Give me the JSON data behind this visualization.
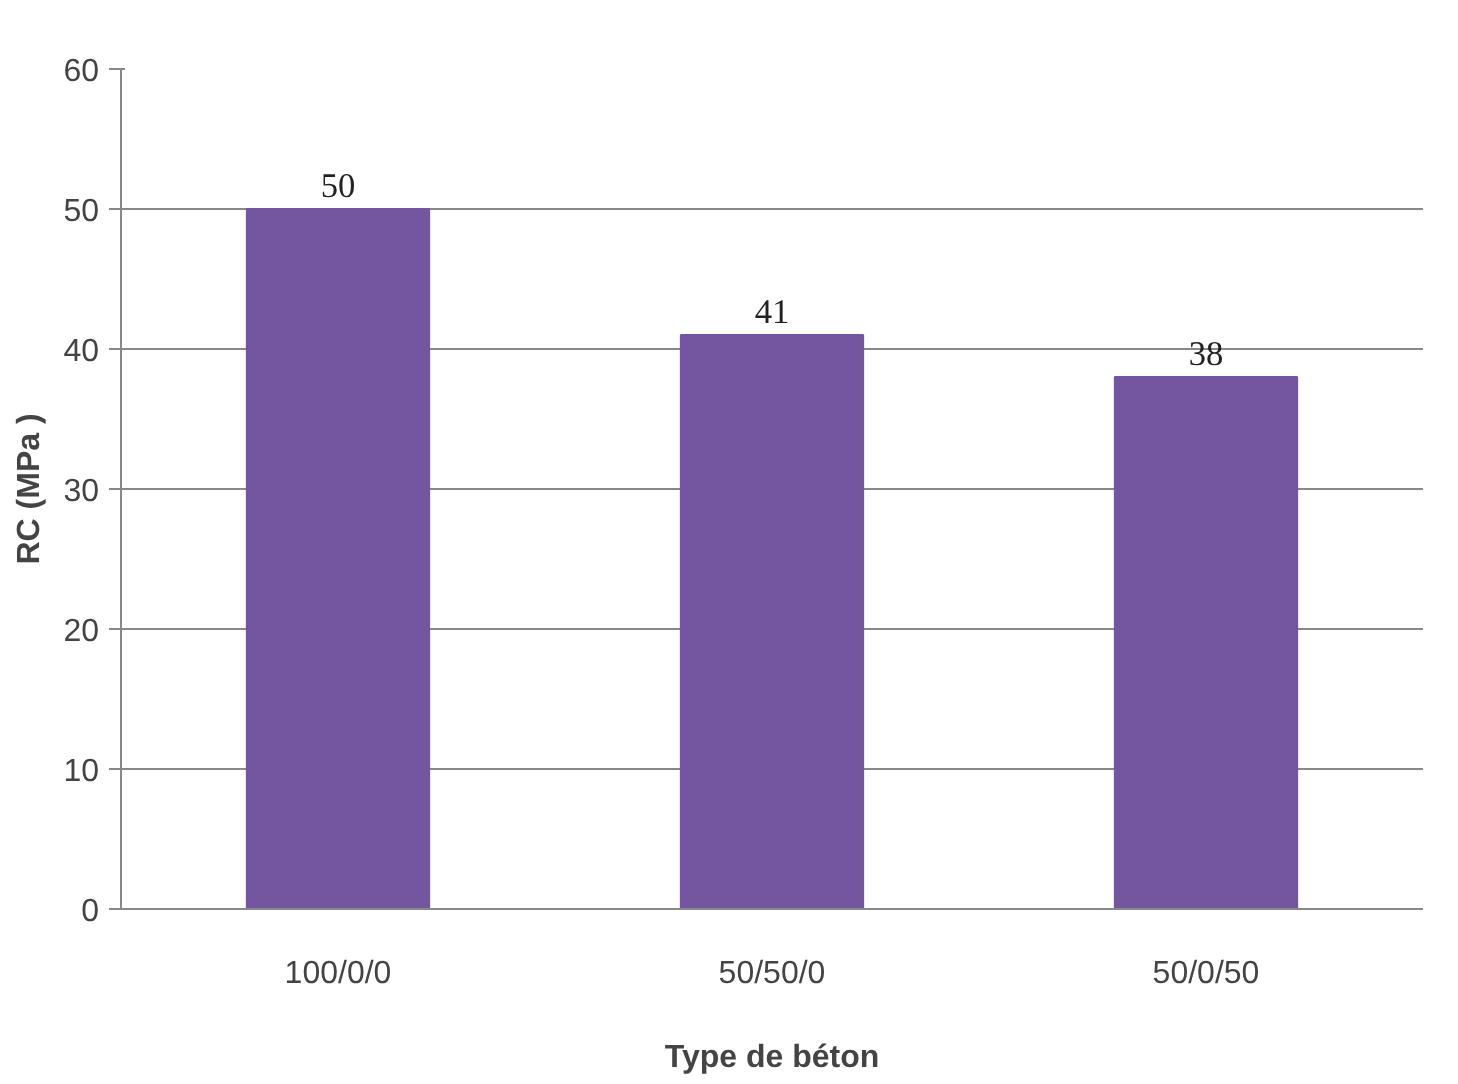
{
  "chart_data": {
    "type": "bar",
    "xlabel": "Type de béton",
    "ylabel": "RC (MPa )",
    "categories": [
      "100/0/0",
      "50/50/0",
      "50/0/50"
    ],
    "values": [
      50,
      41,
      38
    ],
    "color": "#7456a0",
    "ylim": [
      0,
      60
    ],
    "yticks": [
      0,
      10,
      20,
      30,
      40,
      50,
      60
    ],
    "grid": "y",
    "data_labels": true
  }
}
